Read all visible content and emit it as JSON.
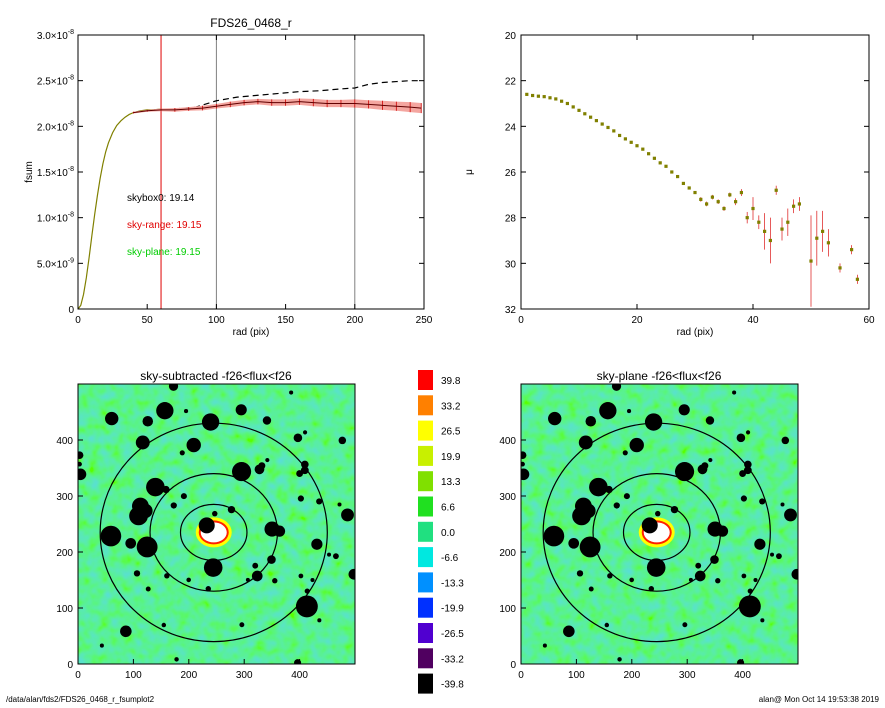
{
  "footer": {
    "left": "/data/alan/fds2/FDS26_0468_r_fsumplot2",
    "right": "alan@  Mon Oct 14 19:53:38 2019"
  },
  "chart_data": [
    {
      "id": "fsum",
      "type": "line",
      "title": "FDS26_0468_r",
      "xlabel": "rad (pix)",
      "ylabel": "fsum",
      "xlim": [
        0,
        250
      ],
      "ylim": [
        0,
        3e-08
      ],
      "xticks": [
        0,
        50,
        100,
        150,
        200,
        250
      ],
      "xtick_labels": [
        "0",
        "50",
        "100",
        "150",
        "200",
        "250"
      ],
      "yticks": [
        0,
        5e-09,
        1e-08,
        1.5e-08,
        2e-08,
        2.5e-08,
        3e-08
      ],
      "ytick_labels": [
        {
          "m": "0",
          "e": ""
        },
        {
          "m": "5.0×10",
          "e": "-9"
        },
        {
          "m": "1.0×10",
          "e": "-8"
        },
        {
          "m": "1.5×10",
          "e": "-8"
        },
        {
          "m": "2.0×10",
          "e": "-8"
        },
        {
          "m": "2.5×10",
          "e": "-8"
        },
        {
          "m": "3.0×10",
          "e": "-8"
        }
      ],
      "vlines": [
        {
          "x": 60,
          "color": "#e00000"
        },
        {
          "x": 100,
          "color": "#808080"
        },
        {
          "x": 200,
          "color": "#808080"
        }
      ],
      "annotations": [
        {
          "text": "skybox0: 19.14",
          "color": "#000000"
        },
        {
          "text": "sky-range: 19.15",
          "color": "#e00000"
        },
        {
          "text": "sky-plane: 19.15",
          "color": "#00cc00"
        }
      ],
      "series": [
        {
          "style": "dashed",
          "color": "#000000",
          "x": [
            55,
            70,
            85,
            100,
            115,
            130,
            145,
            160,
            175,
            190,
            200,
            210,
            220,
            230,
            240,
            248
          ],
          "y": [
            2.18e-08,
            2.19e-08,
            2.21e-08,
            2.28e-08,
            2.32e-08,
            2.34e-08,
            2.36e-08,
            2.38e-08,
            2.39e-08,
            2.41e-08,
            2.42e-08,
            2.46e-08,
            2.48e-08,
            2.49e-08,
            2.5e-08,
            2.5e-08
          ]
        },
        {
          "style": "solid",
          "color": "#808000",
          "x": [
            0,
            2,
            4,
            6,
            8,
            10,
            12,
            14,
            16,
            18,
            20,
            22,
            25,
            28,
            31,
            34,
            37,
            40,
            45,
            50,
            55,
            60
          ],
          "y": [
            0,
            4e-10,
            1.6e-09,
            3.4e-09,
            5.6e-09,
            8e-09,
            1.03e-08,
            1.24e-08,
            1.43e-08,
            1.59e-08,
            1.72e-08,
            1.82e-08,
            1.93e-08,
            2.01e-08,
            2.06e-08,
            2.1e-08,
            2.13e-08,
            2.15e-08,
            2.17e-08,
            2.18e-08,
            2.18e-08,
            2.19e-08
          ]
        },
        {
          "style": "errorband",
          "color": "#cc0000",
          "fill": "#f4a6a0",
          "x": [
            40,
            50,
            60,
            70,
            80,
            90,
            100,
            110,
            120,
            130,
            140,
            150,
            160,
            170,
            180,
            190,
            200,
            210,
            220,
            230,
            240,
            248
          ],
          "y": [
            2.15e-08,
            2.17e-08,
            2.18e-08,
            2.18e-08,
            2.19e-08,
            2.2e-08,
            2.22e-08,
            2.24e-08,
            2.26e-08,
            2.27e-08,
            2.26e-08,
            2.26e-08,
            2.27e-08,
            2.26e-08,
            2.25e-08,
            2.25e-08,
            2.25e-08,
            2.24e-08,
            2.23e-08,
            2.22e-08,
            2.21e-08,
            2.2e-08
          ],
          "err": [
            1e-10,
            1e-10,
            1.5e-10,
            2e-10,
            2e-10,
            2.5e-10,
            2.5e-10,
            3e-10,
            3e-10,
            3e-10,
            3.5e-10,
            3.5e-10,
            3.5e-10,
            4e-10,
            4e-10,
            4e-10,
            4.5e-10,
            4.5e-10,
            5e-10,
            5e-10,
            5.5e-10,
            5.5e-10
          ]
        }
      ]
    },
    {
      "id": "mu",
      "type": "scatter",
      "title": "",
      "xlabel": "rad (pix)",
      "ylabel": "μ",
      "xlim": [
        0,
        60
      ],
      "ylim": [
        32,
        20
      ],
      "xticks": [
        0,
        20,
        40,
        60
      ],
      "xtick_labels": [
        "0",
        "20",
        "40",
        "60"
      ],
      "yticks": [
        20,
        22,
        24,
        26,
        28,
        30,
        32
      ],
      "ytick_labels": [
        "20",
        "22",
        "24",
        "26",
        "28",
        "30",
        "32"
      ],
      "series": [
        {
          "color": "#808000",
          "x": [
            1,
            2,
            3,
            4,
            5,
            6,
            7,
            8,
            9,
            10,
            11,
            12,
            13,
            14,
            15,
            16,
            17,
            18,
            19,
            20,
            21,
            22,
            23,
            24,
            25,
            26,
            27,
            28,
            29,
            30,
            31,
            32,
            33,
            34,
            35,
            36,
            37,
            38,
            39,
            40,
            41,
            42,
            43,
            44,
            45,
            46,
            47,
            48,
            50,
            51,
            52,
            53,
            55,
            57,
            58
          ],
          "y": [
            22.6,
            22.65,
            22.68,
            22.7,
            22.75,
            22.8,
            22.9,
            23.0,
            23.15,
            23.3,
            23.45,
            23.6,
            23.75,
            23.9,
            24.05,
            24.2,
            24.4,
            24.55,
            24.7,
            24.85,
            25.0,
            25.2,
            25.4,
            25.6,
            25.75,
            26.0,
            26.2,
            26.5,
            26.7,
            26.9,
            27.2,
            27.4,
            27.1,
            27.3,
            27.6,
            27.0,
            27.3,
            26.9,
            28.0,
            27.6,
            28.2,
            28.6,
            29.0,
            26.8,
            28.5,
            28.2,
            27.5,
            27.4,
            29.9,
            28.9,
            28.6,
            29.1,
            30.2,
            29.4,
            30.7
          ],
          "err": [
            0.05,
            0.05,
            0.05,
            0.05,
            0.05,
            0.05,
            0.05,
            0.05,
            0.05,
            0.05,
            0.05,
            0.05,
            0.05,
            0.05,
            0.05,
            0.05,
            0.05,
            0.05,
            0.05,
            0.05,
            0.05,
            0.05,
            0.05,
            0.05,
            0.05,
            0.05,
            0.05,
            0.05,
            0.05,
            0.05,
            0.1,
            0.1,
            0.1,
            0.1,
            0.1,
            0.1,
            0.15,
            0.15,
            0.25,
            0.5,
            0.3,
            0.8,
            1.0,
            0.2,
            0.5,
            0.6,
            0.3,
            0.3,
            2.0,
            1.2,
            0.9,
            0.6,
            0.2,
            0.2,
            0.2
          ]
        }
      ]
    },
    {
      "id": "map-sky-subtracted",
      "type": "heatmap",
      "title": "sky-subtracted -f26<flux<f26",
      "xlim": [
        0,
        500
      ],
      "ylim": [
        0,
        500
      ],
      "xticks": [
        0,
        100,
        200,
        300,
        400
      ],
      "xtick_labels": [
        "0",
        "100",
        "200",
        "300",
        "400"
      ],
      "yticks": [
        0,
        100,
        200,
        300,
        400
      ],
      "ytick_labels": [
        "0",
        "100",
        "200",
        "300",
        "400"
      ],
      "center": [
        245,
        235
      ],
      "ellipses": [
        {
          "rx": 60,
          "ry": 50
        },
        {
          "rx": 115,
          "ry": 105
        },
        {
          "rx": 205,
          "ry": 195
        }
      ]
    },
    {
      "id": "colorbar",
      "type": "colorbar",
      "levels": [
        {
          "value": "39.8",
          "color": "#ff0000"
        },
        {
          "value": "33.2",
          "color": "#ff8000"
        },
        {
          "value": "26.5",
          "color": "#ffff00"
        },
        {
          "value": "19.9",
          "color": "#c8f000"
        },
        {
          "value": "13.3",
          "color": "#80e000"
        },
        {
          "value": "6.6",
          "color": "#20e020"
        },
        {
          "value": "0.0",
          "color": "#20e080"
        },
        {
          "value": "-6.6",
          "color": "#00e8e0"
        },
        {
          "value": "-13.3",
          "color": "#0090ff"
        },
        {
          "value": "-19.9",
          "color": "#0030ff"
        },
        {
          "value": "-26.5",
          "color": "#5000d0"
        },
        {
          "value": "-33.2",
          "color": "#500060"
        },
        {
          "value": "-39.8",
          "color": "#000000"
        }
      ]
    },
    {
      "id": "map-sky-plane",
      "type": "heatmap",
      "title": "sky-plane -f26<flux<f26",
      "xlim": [
        0,
        500
      ],
      "ylim": [
        0,
        500
      ],
      "xticks": [
        0,
        100,
        200,
        300,
        400
      ],
      "xtick_labels": [
        "0",
        "100",
        "200",
        "300",
        "400"
      ],
      "yticks": [
        0,
        100,
        200,
        300,
        400
      ],
      "ytick_labels": [
        "0",
        "100",
        "200",
        "300",
        "400"
      ],
      "center": [
        245,
        235
      ],
      "ellipses": [
        {
          "rx": 60,
          "ry": 50
        },
        {
          "rx": 115,
          "ry": 105
        },
        {
          "rx": 205,
          "ry": 195
        }
      ]
    }
  ]
}
